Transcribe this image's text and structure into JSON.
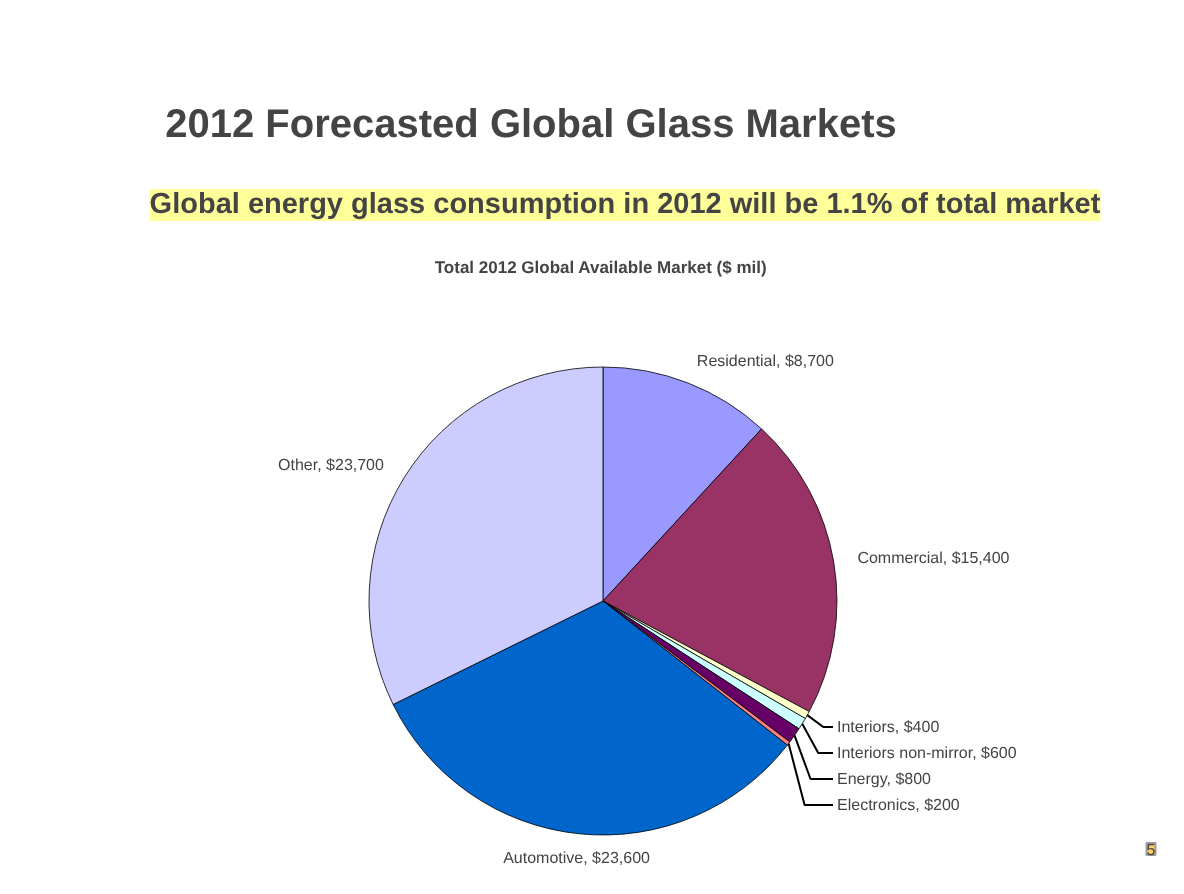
{
  "chart_data": {
    "type": "pie",
    "title": "2012 Forecasted Global Glass Markets",
    "subtitle": "Global energy glass consumption in 2012 will be 1.1% of total market",
    "annotations": [
      "Total 2012 Global Available Market ($ mil)",
      "5"
    ],
    "categories": [
      "Residential",
      "Commercial",
      "Interiors",
      "Interiors non-mirror",
      "Energy",
      "Electronics",
      "Automotive",
      "Other"
    ],
    "values": [
      8700,
      15400,
      400,
      600,
      800,
      200,
      23600,
      23700
    ],
    "colors": [
      "#9999ff",
      "#993366",
      "#ffffcc",
      "#ccffff",
      "#660066",
      "#ff8080",
      "#0066cc",
      "#ccccff"
    ],
    "value_labels": [
      "$8,700",
      "$15,400",
      "$400",
      "$600",
      "$800",
      "$200",
      "$23,600",
      "$23,700"
    ]
  }
}
